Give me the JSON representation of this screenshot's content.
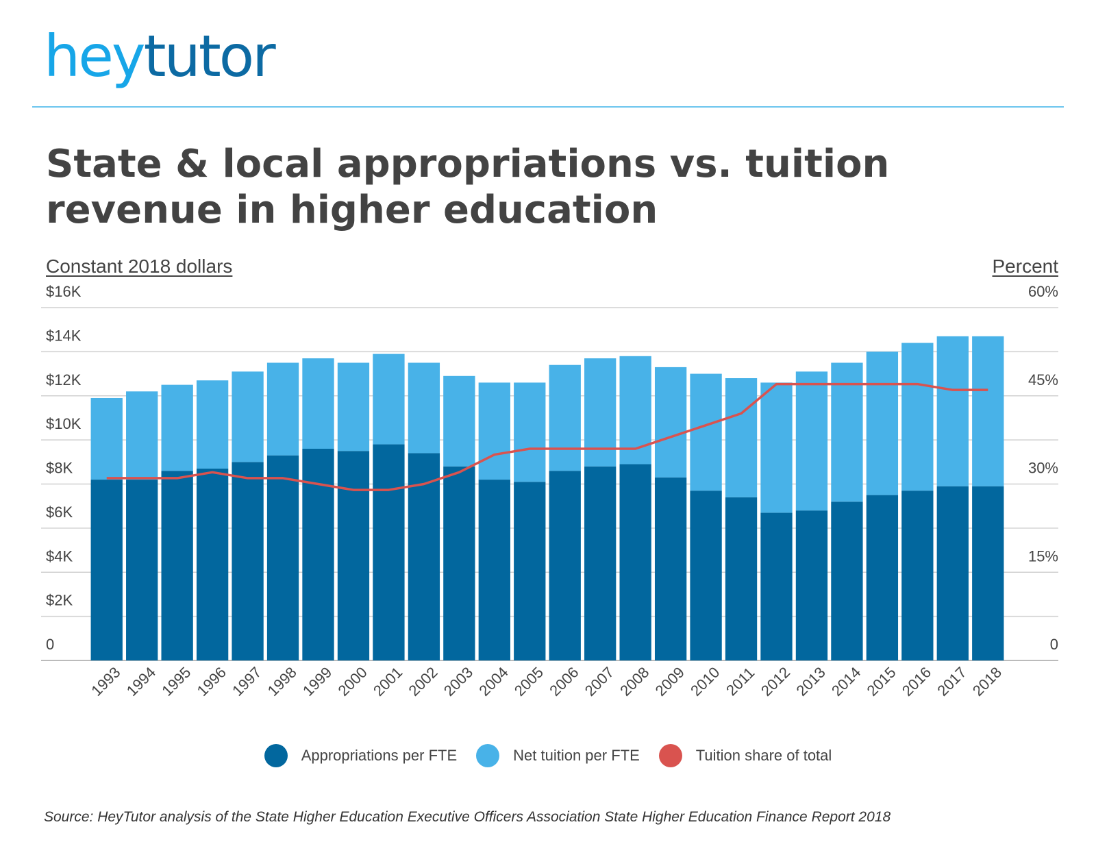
{
  "brand": {
    "logo_part1": "hey",
    "logo_part2": "tutor"
  },
  "title": "State & local appropriations vs. tuition revenue in higher education",
  "source": "Source: HeyTutor analysis of the State Higher Education Executive Officers Association State Higher Education Finance Report 2018",
  "colors": {
    "appropriations": "#02679e",
    "net_tuition": "#48b2e8",
    "tuition_share": "#d9534f",
    "grid": "#d0d0d0",
    "axis_text": "#444444"
  },
  "chart_data": {
    "type": "bar",
    "stacked": true,
    "left_axis_title": "Constant 2018 dollars",
    "right_axis_title": "Percent",
    "categories": [
      "1993",
      "1994",
      "1995",
      "1996",
      "1997",
      "1998",
      "1999",
      "2000",
      "2001",
      "2002",
      "2003",
      "2004",
      "2005",
      "2006",
      "2007",
      "2008",
      "2009",
      "2010",
      "2011",
      "2012",
      "2013",
      "2014",
      "2015",
      "2016",
      "2017",
      "2018"
    ],
    "ylim": [
      0,
      16000
    ],
    "y2lim": [
      0,
      60
    ],
    "yticks": [
      0,
      2000,
      4000,
      6000,
      8000,
      10000,
      12000,
      14000,
      16000
    ],
    "ytick_labels": [
      "0",
      "$2K",
      "$4K",
      "$6K",
      "$8K",
      "$10K",
      "$12K",
      "$14K",
      "$16K"
    ],
    "y2ticks": [
      0,
      15,
      30,
      45,
      60
    ],
    "y2tick_labels": [
      "0",
      "15%",
      "30%",
      "45%",
      "60%"
    ],
    "grid": true,
    "legend_position": "bottom",
    "series": [
      {
        "name": "Appropriations per FTE",
        "axis": "left",
        "kind": "bar",
        "values": [
          8200,
          8200,
          8600,
          8700,
          9000,
          9300,
          9600,
          9500,
          9800,
          9400,
          8800,
          8200,
          8100,
          8600,
          8800,
          8900,
          8300,
          7700,
          7400,
          6700,
          6800,
          7200,
          7500,
          7700,
          7900,
          7900
        ]
      },
      {
        "name": "Net tuition per FTE",
        "axis": "left",
        "kind": "bar",
        "values": [
          3700,
          4000,
          3900,
          4000,
          4100,
          4200,
          4100,
          4000,
          4100,
          4100,
          4100,
          4400,
          4500,
          4800,
          4900,
          4900,
          5000,
          5300,
          5400,
          5900,
          6300,
          6300,
          6500,
          6700,
          6800,
          6800
        ]
      },
      {
        "name": "Tuition share of total",
        "axis": "right",
        "kind": "line",
        "values": [
          31,
          31,
          31,
          32,
          31,
          31,
          30,
          29,
          29,
          30,
          32,
          35,
          36,
          36,
          36,
          36,
          38,
          40,
          42,
          47,
          47,
          47,
          47,
          47,
          46,
          46
        ]
      }
    ]
  }
}
